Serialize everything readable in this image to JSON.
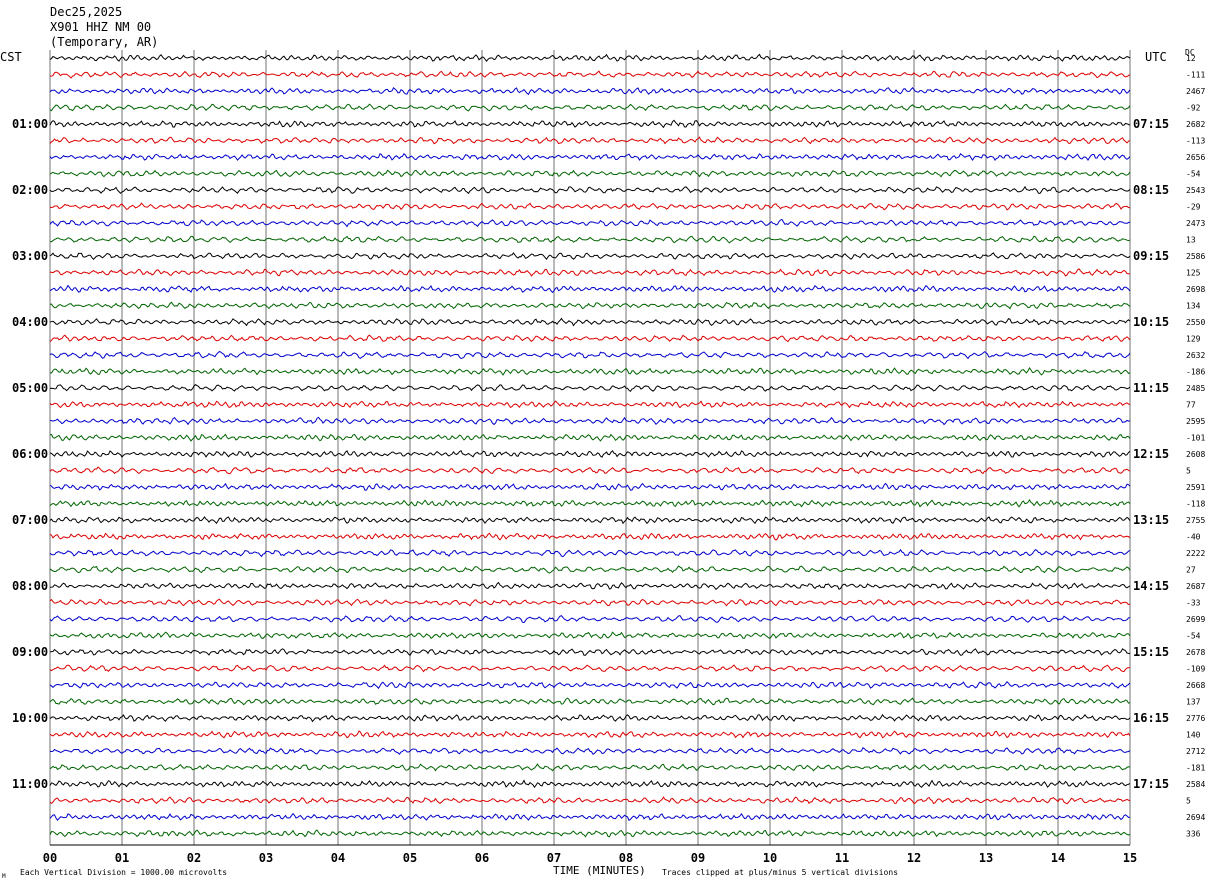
{
  "header": {
    "date": "Dec25,2025",
    "station": "X901 HHZ NM 00",
    "network": "(Temporary, AR)"
  },
  "left_axis_label": "CST",
  "right_axis_label": "UTC",
  "dc_label": "DC",
  "footer": {
    "xlabel": "TIME (MINUTES)",
    "scale_note": "Each Vertical Division = 1000.00 microvolts",
    "clip_note": "Traces clipped at plus/minus 5 vertical divisions",
    "corner_mark": "M"
  },
  "colors": {
    "trace_cycle": [
      "#000000",
      "#dd0000",
      "#0000cc",
      "#006400"
    ],
    "grid": "#000000",
    "text": "#000000"
  },
  "chart_data": {
    "type": "line",
    "title": "",
    "xlabel": "TIME (MINUTES)",
    "ylabel": "",
    "xlim": [
      0,
      15
    ],
    "x_ticks": [
      "00",
      "01",
      "02",
      "03",
      "04",
      "05",
      "06",
      "07",
      "08",
      "09",
      "10",
      "11",
      "12",
      "13",
      "14",
      "15"
    ],
    "rows_per_hour": 4,
    "minutes_per_row": 15,
    "trace_count": 48,
    "left_hour_labels": [
      "01:00",
      "02:00",
      "03:00",
      "04:00",
      "05:00",
      "06:00",
      "07:00",
      "08:00",
      "09:00",
      "10:00",
      "11:00"
    ],
    "right_hour_labels": [
      "07:15",
      "08:15",
      "09:15",
      "10:15",
      "11:15",
      "12:15",
      "13:15",
      "14:15",
      "15:15",
      "16:15",
      "17:15"
    ],
    "dc_offsets": [
      "12",
      "-111",
      "2467",
      "-92",
      "2682",
      "-113",
      "2656",
      "-54",
      "2543",
      "-29",
      "2473",
      "13",
      "2586",
      "125",
      "2698",
      "134",
      "2550",
      "129",
      "2632",
      "-186",
      "2485",
      "77",
      "2595",
      "-101",
      "2608",
      "5",
      "2591",
      "-118",
      "2755",
      "-40",
      "2222",
      "27",
      "2687",
      "-33",
      "2699",
      "-54",
      "2678",
      "-109",
      "2668",
      "137",
      "2776",
      "140",
      "2712",
      "-181",
      "2584",
      "5",
      "2694",
      "336"
    ]
  }
}
